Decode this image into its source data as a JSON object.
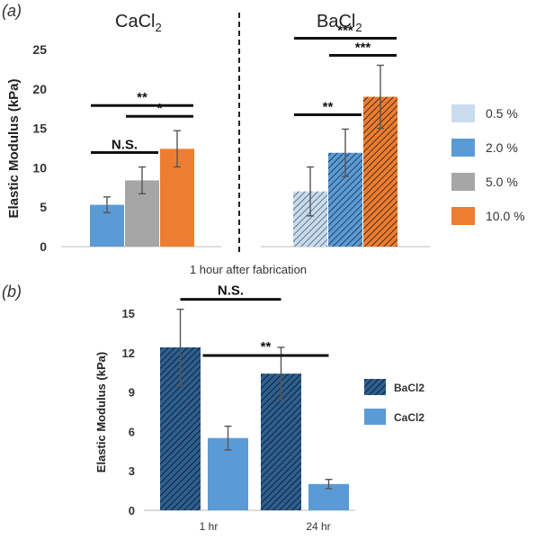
{
  "chart_data": [
    {
      "panel_label": "(a)",
      "type": "bar",
      "ylabel": "Elastic Modulus (kPa)",
      "ylim": [
        0,
        25
      ],
      "yticks": [
        0,
        5,
        10,
        15,
        20,
        25
      ],
      "xlabel": "1 hour after fabrication",
      "groups": [
        {
          "label": "CaCl",
          "label_sub": "2",
          "bars": [
            {
              "series": "2.0 %",
              "value": 5.3,
              "error": 1.0,
              "color": "#5b9bd5",
              "hatched": false
            },
            {
              "series": "5.0 %",
              "value": 8.4,
              "error": 1.7,
              "color": "#a6a6a6",
              "hatched": false
            },
            {
              "series": "10.0 %",
              "value": 12.4,
              "error": 2.3,
              "color": "#ed7d31",
              "hatched": false
            }
          ],
          "significance": [
            {
              "label": "N.S.",
              "from": "2.0 %",
              "to": "5.0 %"
            },
            {
              "label": "*",
              "from": "5.0 %",
              "to": "10.0 %"
            },
            {
              "label": "**",
              "from": "2.0 %",
              "to": "10.0 %"
            }
          ]
        },
        {
          "label": "BaCl",
          "label_sub": "2",
          "bars": [
            {
              "series": "0.5 %",
              "value": 7.0,
              "error": 3.1,
              "color": "#c9dcee",
              "hatched": true
            },
            {
              "series": "2.0 %",
              "value": 11.9,
              "error": 3.0,
              "color": "#5b9bd5",
              "hatched": true
            },
            {
              "series": "10.0 %",
              "value": 19.0,
              "error": 4.0,
              "color": "#ed7d31",
              "hatched": true
            }
          ],
          "significance": [
            {
              "label": "**",
              "from": "0.5 %",
              "to": "2.0 %"
            },
            {
              "label": "***",
              "from": "2.0 %",
              "to": "10.0 %"
            },
            {
              "label": "***",
              "from": "0.5 %",
              "to": "10.0 %"
            }
          ]
        }
      ],
      "legend": [
        {
          "label": "0.5 %",
          "color": "#c9dcee"
        },
        {
          "label": "2.0 %",
          "color": "#5b9bd5"
        },
        {
          "label": "5.0 %",
          "color": "#a6a6a6"
        },
        {
          "label": "10.0 %",
          "color": "#ed7d31"
        }
      ],
      "legend_position": "right"
    },
    {
      "panel_label": "(b)",
      "type": "bar",
      "ylabel": "Elastic Modulus (kPa)",
      "ylim": [
        0,
        15
      ],
      "yticks": [
        0,
        3,
        6,
        9,
        12,
        15
      ],
      "categories": [
        "1 hr",
        "24 hr"
      ],
      "series": [
        {
          "name": "BaCl2",
          "values": [
            12.4,
            10.4
          ],
          "errors": [
            2.9,
            2.0
          ],
          "color": "#2e5f8f",
          "hatched": true
        },
        {
          "name": "CaCl2",
          "values": [
            5.5,
            2.0
          ],
          "errors": [
            0.9,
            0.35
          ],
          "color": "#5b9bd5",
          "hatched": false
        }
      ],
      "significance": [
        {
          "label": "N.S.",
          "between": "BaCl2 1 hr vs BaCl2 24 hr"
        },
        {
          "label": "**",
          "between": "CaCl2 1 hr vs CaCl2 24 hr"
        }
      ],
      "legend_position": "right"
    }
  ]
}
